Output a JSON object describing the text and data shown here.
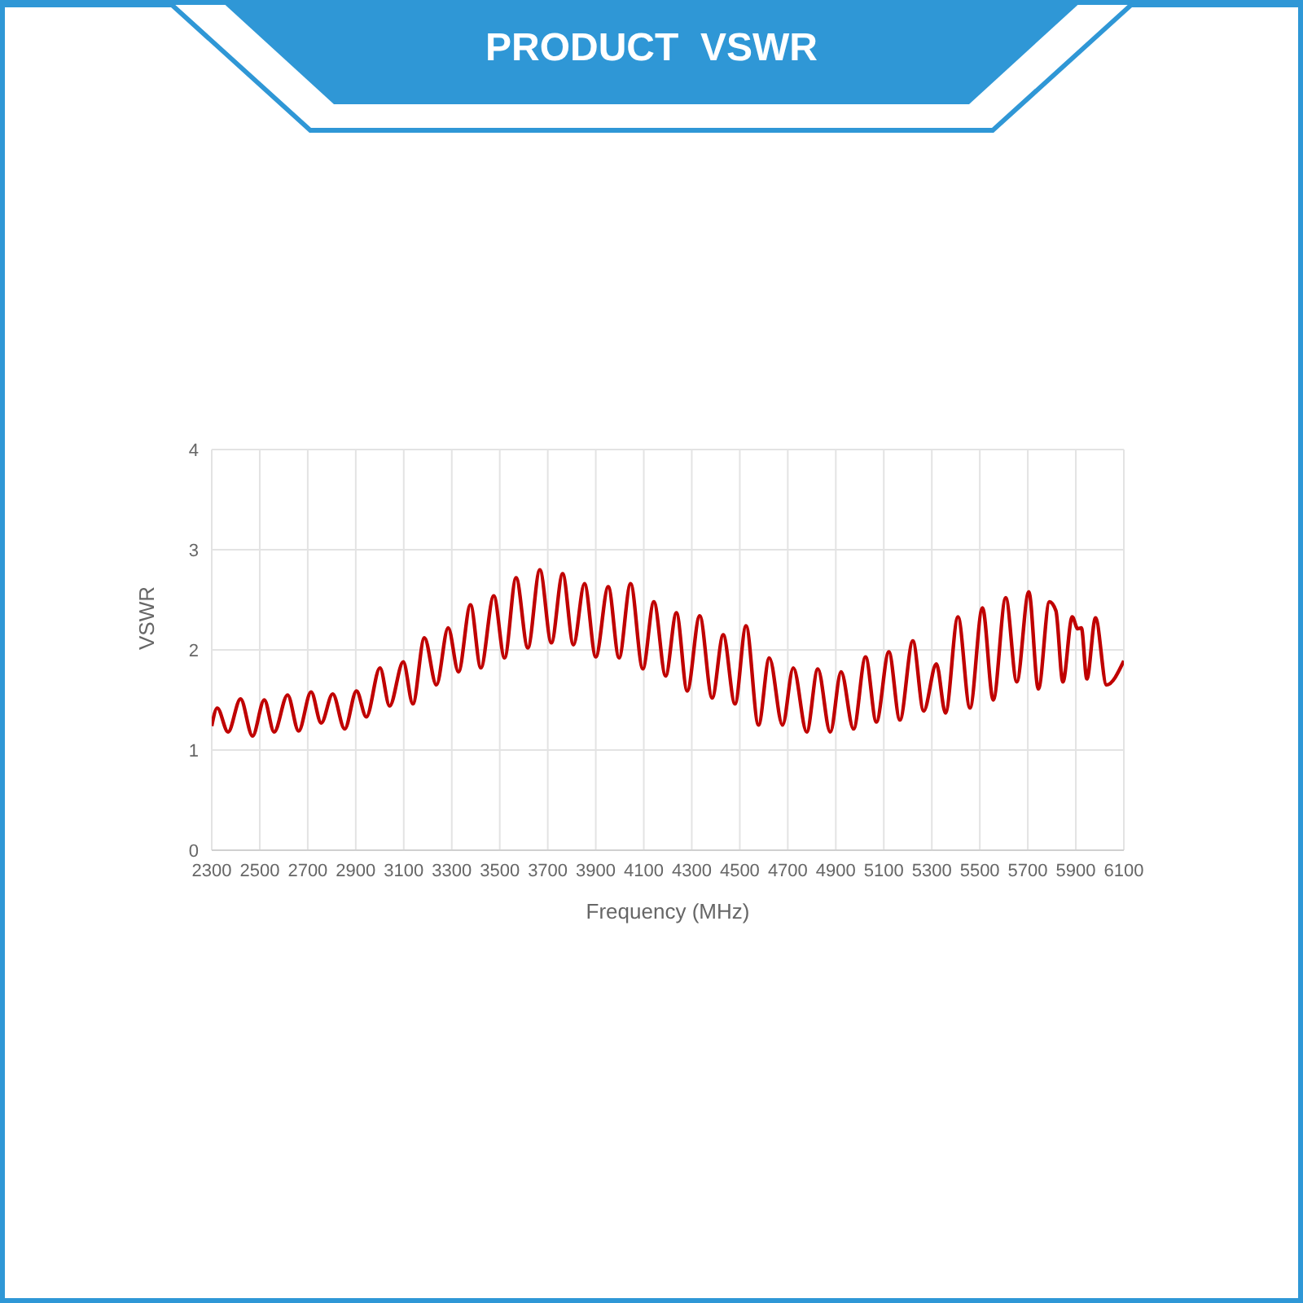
{
  "chart_data": {
    "type": "line",
    "title": "PRODUCT  VSWR",
    "xlabel": "Frequency (MHz)",
    "ylabel": "VSWR",
    "x": [
      2300,
      2323,
      2368,
      2420,
      2470,
      2519,
      2560,
      2616,
      2662,
      2714,
      2756,
      2804,
      2854,
      2903,
      2944,
      3001,
      3041,
      3098,
      3138,
      3186,
      3236,
      3285,
      3328,
      3378,
      3421,
      3475,
      3520,
      3568,
      3617,
      3667,
      3715,
      3762,
      3807,
      3853,
      3900,
      3952,
      3997,
      4045,
      4096,
      4142,
      4191,
      4236,
      4281,
      4333,
      4385,
      4431,
      4480,
      4526,
      4578,
      4623,
      4678,
      4723,
      4779,
      4825,
      4877,
      4922,
      4974,
      5024,
      5069,
      5121,
      5167,
      5221,
      5266,
      5319,
      5357,
      5409,
      5459,
      5511,
      5556,
      5608,
      5654,
      5704,
      5744,
      5790,
      5817,
      5846,
      5885,
      5908,
      5923,
      5946,
      5982,
      6028,
      6100
    ],
    "series": [
      {
        "color": "#c00000",
        "values": [
          1.24,
          1.42,
          1.18,
          1.51,
          1.14,
          1.5,
          1.18,
          1.55,
          1.19,
          1.58,
          1.27,
          1.56,
          1.21,
          1.59,
          1.33,
          1.82,
          1.44,
          1.88,
          1.46,
          2.12,
          1.65,
          2.22,
          1.78,
          2.45,
          1.82,
          2.54,
          1.92,
          2.72,
          2.02,
          2.8,
          2.07,
          2.76,
          2.05,
          2.66,
          1.93,
          2.63,
          1.92,
          2.66,
          1.81,
          2.48,
          1.74,
          2.37,
          1.59,
          2.34,
          1.52,
          2.15,
          1.46,
          2.24,
          1.25,
          1.92,
          1.25,
          1.82,
          1.18,
          1.81,
          1.18,
          1.78,
          1.21,
          1.93,
          1.28,
          1.98,
          1.3,
          2.09,
          1.39,
          1.86,
          1.37,
          2.33,
          1.42,
          2.42,
          1.5,
          2.52,
          1.68,
          2.58,
          1.61,
          2.48,
          2.39,
          1.68,
          2.33,
          2.21,
          2.22,
          1.71,
          2.32,
          1.65,
          1.89
        ]
      }
    ],
    "xlim": [
      2300,
      6100
    ],
    "xticks": [
      2300,
      2500,
      2700,
      2900,
      3100,
      3300,
      3500,
      3700,
      3900,
      4100,
      4300,
      4500,
      4700,
      4900,
      5100,
      5300,
      5500,
      5700,
      5900,
      6100
    ],
    "ylim": [
      0,
      4
    ],
    "yticks": [
      0,
      1,
      2,
      3,
      4
    ],
    "grid": true,
    "legend": false
  }
}
